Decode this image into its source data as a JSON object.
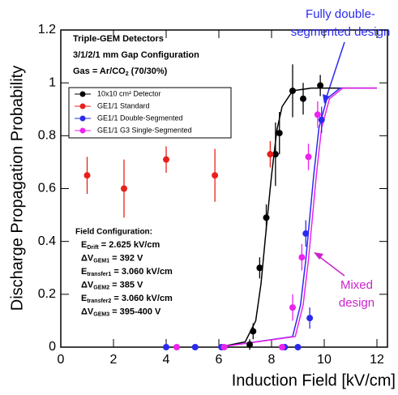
{
  "chart_data": {
    "type": "scatter",
    "xlabel": "Induction Field [kV/cm]",
    "ylabel": "Discharge Propagation Probability",
    "xlim": [
      0,
      12.4
    ],
    "ylim": [
      0,
      1.2
    ],
    "xticks": [
      0,
      2,
      4,
      6,
      8,
      10,
      12
    ],
    "yticks": [
      0,
      0.2,
      0.4,
      0.6,
      0.8,
      1,
      1.2
    ],
    "info": [
      "Triple-GEM Detectors",
      "3/1/2/1 mm Gap Configuration",
      {
        "main": "Gas = Ar/CO",
        "sub": "2",
        "rest": " (70/30%)"
      }
    ],
    "field_title": "Field Configuration:",
    "field_lines": [
      {
        "main": "E",
        "sub": "Drift",
        "rest": " = 2.625 kV/cm"
      },
      {
        "main": "ΔV",
        "sub": "GEM1",
        "rest": " = 392 V"
      },
      {
        "main": "E",
        "sub": "transfer1",
        "rest": " = 3.060 kV/cm"
      },
      {
        "main": "ΔV",
        "sub": "GEM2",
        "rest": " = 385 V"
      },
      {
        "main": "E",
        "sub": "transfer2",
        "rest": " = 3.060 kV/cm"
      },
      {
        "main": "ΔV",
        "sub": "GEM3",
        "rest": " = 395-400 V"
      }
    ],
    "annotations": [
      "Fully double-",
      "segmented design",
      "Mixed",
      "design"
    ],
    "series": [
      {
        "name": "10x10 cm² Detector",
        "color": "#000000",
        "x": [
          7.17,
          7.3,
          7.55,
          7.8,
          8.15,
          8.3,
          8.8,
          9.2,
          9.85
        ],
        "values": [
          0.01,
          0.06,
          0.3,
          0.49,
          0.73,
          0.81,
          0.97,
          0.94,
          0.99
        ],
        "errors": [
          0.02,
          0.03,
          0.04,
          0.05,
          0.12,
          0.08,
          0.1,
          0.06,
          0.04
        ]
      },
      {
        "name": "GE1/1 Standard",
        "color": "#e8201c",
        "x": [
          1.0,
          2.4,
          4.0,
          5.85,
          7.95
        ],
        "values": [
          0.65,
          0.6,
          0.71,
          0.65,
          0.73
        ],
        "errors": [
          0.07,
          0.11,
          0.05,
          0.1,
          0.05
        ]
      },
      {
        "name": "GE1/1 Double-Segmented",
        "color": "#2a2aee",
        "x": [
          4.0,
          5.1,
          6.1,
          8.5,
          9.0,
          9.3,
          9.45,
          9.9
        ],
        "values": [
          0,
          0,
          0,
          0,
          0,
          0.43,
          0.11,
          0.86
        ],
        "errors": [
          0.01,
          0.01,
          0.01,
          0.01,
          0.01,
          0.05,
          0.04,
          0.05
        ]
      },
      {
        "name": "GE1/1 G3 Single-Segmented",
        "color": "#ee22ee",
        "x": [
          4.4,
          6.2,
          8.4,
          8.8,
          9.15,
          9.4,
          9.75
        ],
        "values": [
          0,
          0,
          0,
          0.15,
          0.34,
          0.72,
          0.88
        ],
        "errors": [
          0.01,
          0.01,
          0.01,
          0.05,
          0.05,
          0.05,
          0.05
        ]
      }
    ],
    "fits": [
      {
        "color": "#000000",
        "x": [
          6,
          7,
          7.4,
          7.6,
          7.8,
          8.0,
          8.2,
          8.4,
          8.8,
          9.5,
          12
        ],
        "values": [
          0,
          0.02,
          0.1,
          0.24,
          0.45,
          0.65,
          0.82,
          0.91,
          0.97,
          0.98,
          0.98
        ]
      },
      {
        "color": "#2a2aee",
        "x": [
          6,
          8.8,
          9.1,
          9.3,
          9.45,
          9.6,
          9.8,
          10.1,
          10.6,
          12
        ],
        "values": [
          0,
          0.04,
          0.16,
          0.33,
          0.49,
          0.65,
          0.83,
          0.94,
          0.98,
          0.98
        ]
      },
      {
        "color": "#ee22ee",
        "x": [
          6,
          8.9,
          9.2,
          9.4,
          9.55,
          9.7,
          9.9,
          10.2,
          10.7,
          12
        ],
        "values": [
          0,
          0.04,
          0.16,
          0.33,
          0.49,
          0.65,
          0.83,
          0.94,
          0.98,
          0.98
        ]
      }
    ]
  }
}
